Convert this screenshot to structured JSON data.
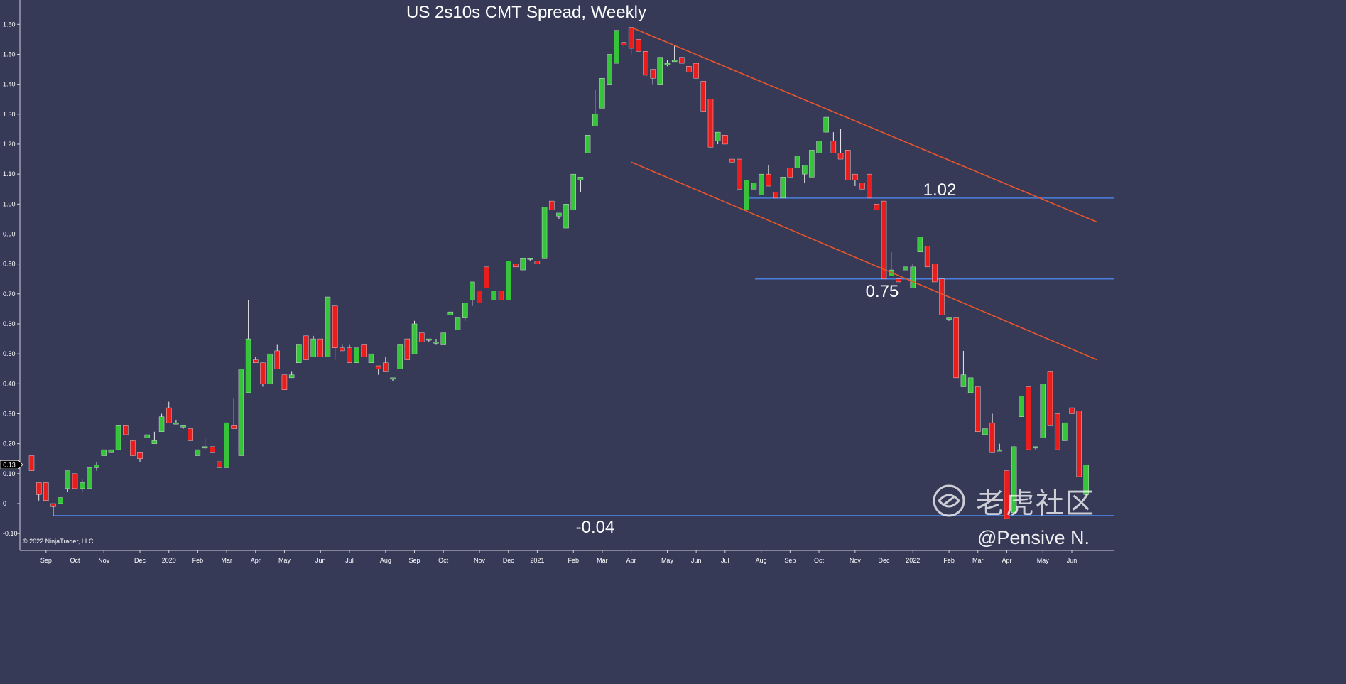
{
  "chart_data": {
    "type": "candlestick",
    "title": "US 2s10s CMT Spread, Weekly",
    "ylim": [
      -0.12,
      1.62
    ],
    "y_ticks": [
      "1.60",
      "1.50",
      "1.40",
      "1.30",
      "1.20",
      "1.10",
      "1.00",
      "0.90",
      "0.80",
      "0.70",
      "0.60",
      "0.50",
      "0.40",
      "0.30",
      "0.20",
      "0.10",
      "0",
      "-0.10"
    ],
    "x_ticks": [
      {
        "label": "Sep",
        "week": 2
      },
      {
        "label": "Oct",
        "week": 6
      },
      {
        "label": "Nov",
        "week": 10
      },
      {
        "label": "Dec",
        "week": 15
      },
      {
        "label": "2020",
        "week": 19
      },
      {
        "label": "Feb",
        "week": 23
      },
      {
        "label": "Mar",
        "week": 27
      },
      {
        "label": "Apr",
        "week": 31
      },
      {
        "label": "May",
        "week": 35
      },
      {
        "label": "Jun",
        "week": 40
      },
      {
        "label": "Jul",
        "week": 44
      },
      {
        "label": "Aug",
        "week": 49
      },
      {
        "label": "Sep",
        "week": 53
      },
      {
        "label": "Oct",
        "week": 57
      },
      {
        "label": "Nov",
        "week": 62
      },
      {
        "label": "Dec",
        "week": 66
      },
      {
        "label": "2021",
        "week": 70
      },
      {
        "label": "Feb",
        "week": 75
      },
      {
        "label": "Mar",
        "week": 79
      },
      {
        "label": "Apr",
        "week": 83
      },
      {
        "label": "May",
        "week": 88
      },
      {
        "label": "Jun",
        "week": 92
      },
      {
        "label": "Jul",
        "week": 96
      },
      {
        "label": "Aug",
        "week": 101
      },
      {
        "label": "Sep",
        "week": 105
      },
      {
        "label": "Oct",
        "week": 109
      },
      {
        "label": "Nov",
        "week": 114
      },
      {
        "label": "Dec",
        "week": 118
      },
      {
        "label": "2022",
        "week": 122
      },
      {
        "label": "Feb",
        "week": 127
      },
      {
        "label": "Mar",
        "week": 131
      },
      {
        "label": "Apr",
        "week": 135
      },
      {
        "label": "May",
        "week": 140
      },
      {
        "label": "Jun",
        "week": 144
      }
    ],
    "candles": [
      [
        0.16,
        0.16,
        0.11,
        0.11
      ],
      [
        0.07,
        0.07,
        0.01,
        0.03
      ],
      [
        0.07,
        0.07,
        0.01,
        0.01
      ],
      [
        0.0,
        0.0,
        -0.04,
        -0.01
      ],
      [
        0.0,
        0.02,
        0.0,
        0.02
      ],
      [
        0.05,
        0.11,
        0.04,
        0.11
      ],
      [
        0.1,
        0.1,
        0.05,
        0.05
      ],
      [
        0.05,
        0.08,
        0.04,
        0.07
      ],
      [
        0.05,
        0.12,
        0.05,
        0.12
      ],
      [
        0.12,
        0.14,
        0.11,
        0.13
      ],
      [
        0.16,
        0.18,
        0.16,
        0.18
      ],
      [
        0.17,
        0.18,
        0.17,
        0.18
      ],
      [
        0.18,
        0.26,
        0.18,
        0.26
      ],
      [
        0.26,
        0.26,
        0.23,
        0.23
      ],
      [
        0.21,
        0.21,
        0.16,
        0.16
      ],
      [
        0.17,
        0.17,
        0.14,
        0.15
      ],
      [
        0.22,
        0.23,
        0.22,
        0.23
      ],
      [
        0.2,
        0.24,
        0.2,
        0.21
      ],
      [
        0.24,
        0.3,
        0.24,
        0.29
      ],
      [
        0.32,
        0.34,
        0.27,
        0.27
      ],
      [
        0.27,
        0.28,
        0.27,
        0.27
      ],
      [
        0.26,
        0.26,
        0.25,
        0.26
      ],
      [
        0.25,
        0.25,
        0.21,
        0.21
      ],
      [
        0.16,
        0.18,
        0.16,
        0.18
      ],
      [
        0.19,
        0.22,
        0.18,
        0.19
      ],
      [
        0.19,
        0.19,
        0.17,
        0.17
      ],
      [
        0.14,
        0.14,
        0.12,
        0.12
      ],
      [
        0.12,
        0.27,
        0.12,
        0.27
      ],
      [
        0.26,
        0.35,
        0.25,
        0.25
      ],
      [
        0.16,
        0.45,
        0.16,
        0.45
      ],
      [
        0.37,
        0.68,
        0.37,
        0.55
      ],
      [
        0.48,
        0.49,
        0.47,
        0.47
      ],
      [
        0.47,
        0.47,
        0.39,
        0.4
      ],
      [
        0.4,
        0.5,
        0.4,
        0.5
      ],
      [
        0.51,
        0.53,
        0.45,
        0.45
      ],
      [
        0.43,
        0.43,
        0.38,
        0.38
      ],
      [
        0.42,
        0.44,
        0.42,
        0.43
      ],
      [
        0.47,
        0.53,
        0.47,
        0.53
      ],
      [
        0.56,
        0.56,
        0.48,
        0.48
      ],
      [
        0.49,
        0.56,
        0.49,
        0.55
      ],
      [
        0.55,
        0.55,
        0.49,
        0.49
      ],
      [
        0.49,
        0.69,
        0.49,
        0.69
      ],
      [
        0.66,
        0.66,
        0.48,
        0.52
      ],
      [
        0.52,
        0.53,
        0.51,
        0.51
      ],
      [
        0.52,
        0.53,
        0.47,
        0.47
      ],
      [
        0.47,
        0.52,
        0.47,
        0.52
      ],
      [
        0.53,
        0.53,
        0.49,
        0.49
      ],
      [
        0.47,
        0.5,
        0.47,
        0.5
      ],
      [
        0.46,
        0.46,
        0.43,
        0.45
      ],
      [
        0.47,
        0.49,
        0.44,
        0.44
      ],
      [
        0.42,
        0.42,
        0.41,
        0.42
      ],
      [
        0.45,
        0.53,
        0.45,
        0.53
      ],
      [
        0.55,
        0.55,
        0.48,
        0.48
      ],
      [
        0.5,
        0.61,
        0.5,
        0.6
      ],
      [
        0.57,
        0.57,
        0.54,
        0.54
      ],
      [
        0.55,
        0.55,
        0.54,
        0.55
      ],
      [
        0.54,
        0.55,
        0.53,
        0.54
      ],
      [
        0.53,
        0.57,
        0.53,
        0.57
      ],
      [
        0.63,
        0.64,
        0.63,
        0.64
      ],
      [
        0.58,
        0.62,
        0.58,
        0.62
      ],
      [
        0.62,
        0.67,
        0.61,
        0.67
      ],
      [
        0.68,
        0.74,
        0.66,
        0.74
      ],
      [
        0.71,
        0.71,
        0.67,
        0.67
      ],
      [
        0.79,
        0.79,
        0.72,
        0.72
      ],
      [
        0.68,
        0.71,
        0.68,
        0.71
      ],
      [
        0.71,
        0.71,
        0.68,
        0.68
      ],
      [
        0.68,
        0.81,
        0.68,
        0.81
      ],
      [
        0.8,
        0.8,
        0.79,
        0.79
      ],
      [
        0.78,
        0.82,
        0.78,
        0.82
      ],
      [
        0.82,
        0.82,
        0.81,
        0.82
      ],
      [
        0.81,
        0.81,
        0.8,
        0.8
      ],
      [
        0.82,
        0.99,
        0.82,
        0.99
      ],
      [
        1.01,
        1.01,
        0.98,
        0.98
      ],
      [
        0.96,
        0.96,
        0.95,
        0.97
      ],
      [
        0.92,
        1.0,
        0.92,
        1.0
      ],
      [
        0.98,
        1.1,
        0.98,
        1.1
      ],
      [
        1.08,
        1.09,
        1.04,
        1.09
      ],
      [
        1.17,
        1.23,
        1.17,
        1.23
      ],
      [
        1.26,
        1.38,
        1.26,
        1.3
      ],
      [
        1.32,
        1.42,
        1.32,
        1.42
      ],
      [
        1.4,
        1.5,
        1.4,
        1.5
      ],
      [
        1.47,
        1.58,
        1.47,
        1.58
      ],
      [
        1.54,
        1.54,
        1.52,
        1.53
      ],
      [
        1.59,
        1.59,
        1.5,
        1.52
      ],
      [
        1.55,
        1.55,
        1.51,
        1.51
      ],
      [
        1.51,
        1.51,
        1.43,
        1.43
      ],
      [
        1.45,
        1.45,
        1.4,
        1.42
      ],
      [
        1.4,
        1.49,
        1.4,
        1.49
      ],
      [
        1.47,
        1.48,
        1.46,
        1.47
      ],
      [
        1.48,
        1.53,
        1.48,
        1.48
      ],
      [
        1.49,
        1.49,
        1.47,
        1.47
      ],
      [
        1.46,
        1.46,
        1.44,
        1.44
      ],
      [
        1.47,
        1.47,
        1.42,
        1.42
      ],
      [
        1.41,
        1.41,
        1.31,
        1.31
      ],
      [
        1.35,
        1.35,
        1.19,
        1.19
      ],
      [
        1.21,
        1.24,
        1.2,
        1.24
      ],
      [
        1.23,
        1.23,
        1.2,
        1.2
      ],
      [
        1.15,
        1.15,
        1.14,
        1.14
      ],
      [
        1.15,
        1.15,
        1.05,
        1.05
      ],
      [
        0.98,
        1.08,
        0.98,
        1.08
      ],
      [
        1.05,
        1.07,
        1.05,
        1.07
      ],
      [
        1.03,
        1.1,
        1.03,
        1.1
      ],
      [
        1.1,
        1.13,
        1.06,
        1.06
      ],
      [
        1.04,
        1.04,
        1.02,
        1.02
      ],
      [
        1.02,
        1.09,
        1.02,
        1.09
      ],
      [
        1.12,
        1.12,
        1.09,
        1.09
      ],
      [
        1.12,
        1.16,
        1.12,
        1.16
      ],
      [
        1.1,
        1.12,
        1.07,
        1.13
      ],
      [
        1.09,
        1.18,
        1.09,
        1.18
      ],
      [
        1.17,
        1.21,
        1.17,
        1.21
      ],
      [
        1.24,
        1.29,
        1.24,
        1.29
      ],
      [
        1.21,
        1.24,
        1.17,
        1.17
      ],
      [
        1.17,
        1.25,
        1.15,
        1.15
      ],
      [
        1.18,
        1.18,
        1.08,
        1.08
      ],
      [
        1.1,
        1.1,
        1.06,
        1.08
      ],
      [
        1.07,
        1.07,
        1.05,
        1.05
      ],
      [
        1.1,
        1.1,
        1.02,
        1.02
      ],
      [
        1.0,
        1.0,
        0.98,
        0.98
      ],
      [
        1.01,
        1.01,
        0.75,
        0.75
      ],
      [
        0.76,
        0.84,
        0.76,
        0.78
      ],
      [
        0.75,
        0.75,
        0.74,
        0.74
      ],
      [
        0.78,
        0.78,
        0.78,
        0.79
      ],
      [
        0.72,
        0.8,
        0.72,
        0.79
      ],
      [
        0.84,
        0.89,
        0.84,
        0.89
      ],
      [
        0.86,
        0.86,
        0.79,
        0.79
      ],
      [
        0.8,
        0.8,
        0.74,
        0.74
      ],
      [
        0.75,
        0.75,
        0.63,
        0.63
      ],
      [
        0.62,
        0.62,
        0.61,
        0.62
      ],
      [
        0.62,
        0.62,
        0.42,
        0.42
      ],
      [
        0.39,
        0.51,
        0.39,
        0.43
      ],
      [
        0.37,
        0.42,
        0.37,
        0.42
      ],
      [
        0.39,
        0.39,
        0.24,
        0.24
      ],
      [
        0.23,
        0.25,
        0.23,
        0.25
      ],
      [
        0.27,
        0.3,
        0.17,
        0.17
      ],
      [
        0.18,
        0.2,
        0.18,
        0.18
      ],
      [
        0.11,
        0.11,
        -0.05,
        -0.05
      ],
      [
        -0.03,
        0.19,
        -0.03,
        0.19
      ],
      [
        0.29,
        0.36,
        0.29,
        0.36
      ],
      [
        0.39,
        0.39,
        0.18,
        0.18
      ],
      [
        0.19,
        0.19,
        0.18,
        0.19
      ],
      [
        0.22,
        0.4,
        0.22,
        0.4
      ],
      [
        0.44,
        0.44,
        0.26,
        0.26
      ],
      [
        0.3,
        0.3,
        0.18,
        0.18
      ],
      [
        0.21,
        0.27,
        0.21,
        0.27
      ],
      [
        0.32,
        0.32,
        0.3,
        0.3
      ],
      [
        0.31,
        0.31,
        0.09,
        0.09
      ],
      [
        0.03,
        0.13,
        0.03,
        0.13
      ]
    ],
    "horizontal_lines": [
      {
        "value": 1.02,
        "label": "1.02"
      },
      {
        "value": 0.75,
        "label": "0.75"
      },
      {
        "value": -0.04,
        "label": "-0.04"
      }
    ],
    "trend_lines": [
      {
        "from": [
          83,
          1.59
        ],
        "to": [
          147.5,
          0.94
        ]
      },
      {
        "from": [
          83,
          1.14
        ],
        "to": [
          147.5,
          0.48
        ]
      }
    ],
    "current_value_label": "0.13",
    "colors": {
      "background": "#373a57",
      "up": "#35c43a",
      "down": "#ea1d1d",
      "level_line": "#4a7fe0",
      "trend_line": "#e8552b",
      "text": "#ffffff"
    },
    "grid": false
  },
  "copyright": "© 2022 NinjaTrader, LLC",
  "watermark": {
    "brand": "老虎社区",
    "handle": "@Pensive N."
  }
}
